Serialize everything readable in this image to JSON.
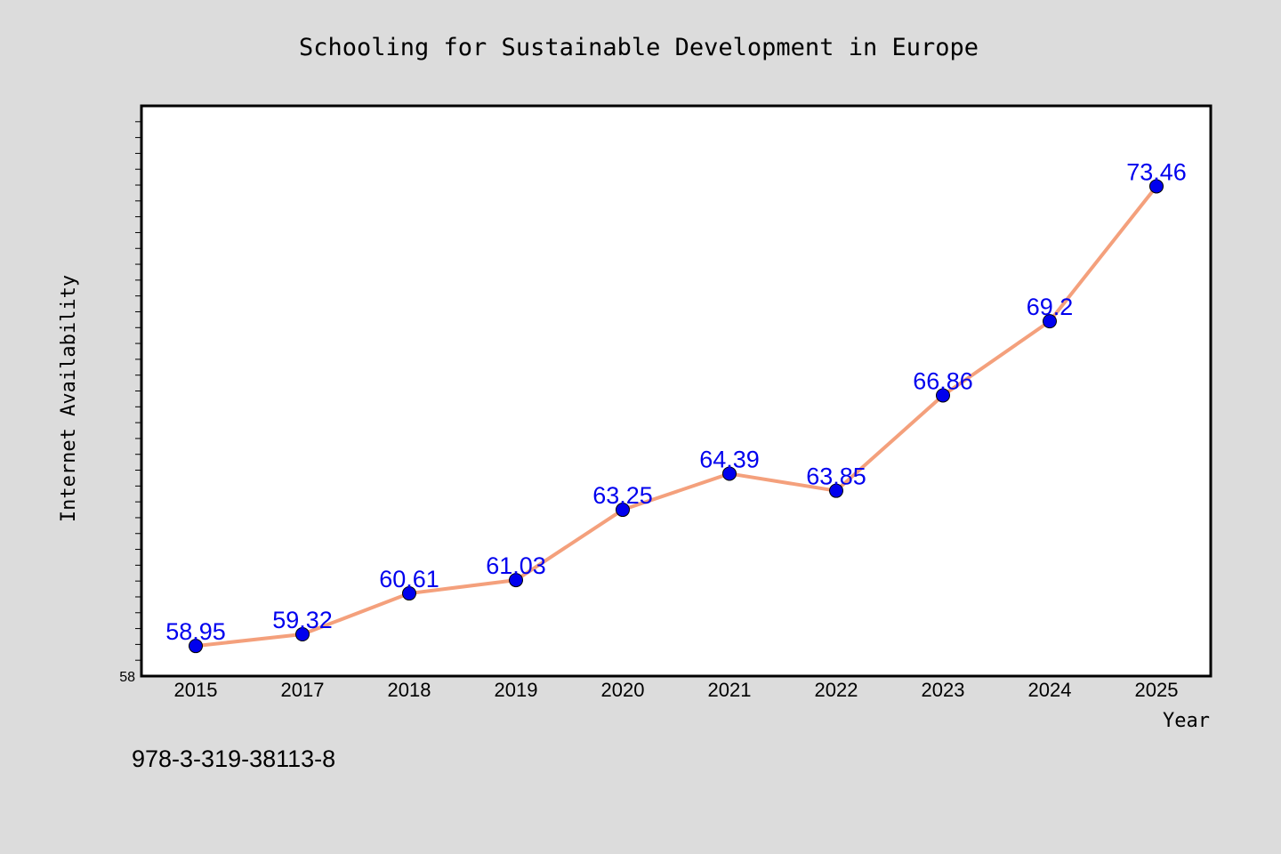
{
  "chart_data": {
    "type": "line",
    "title": "Schooling for Sustainable Development in Europe",
    "xlabel": "Year",
    "ylabel": "Internet Availability",
    "categories": [
      "2015",
      "2017",
      "2018",
      "2019",
      "2020",
      "2021",
      "2022",
      "2023",
      "2024",
      "2025"
    ],
    "series": [
      {
        "values": [
          58.95,
          59.32,
          60.61,
          61.03,
          63.25,
          64.39,
          63.85,
          66.86,
          69.2,
          73.46
        ]
      }
    ],
    "data_labels": [
      "58.95",
      "59.32",
      "60.61",
      "61.03",
      "63.25",
      "64.39",
      "63.85",
      "66.86",
      "69.2",
      "73.46"
    ],
    "ylim": [
      58,
      76
    ],
    "y_tick_label": "58",
    "grid": false,
    "legend": "none",
    "colors": {
      "background": "#dcdcdc",
      "plot_background": "#ffffff",
      "line": "#f4a07c",
      "marker": "#0000ee",
      "data_label": "#0000ee"
    }
  },
  "footer": {
    "isbn": "978-3-319-38113-8"
  }
}
